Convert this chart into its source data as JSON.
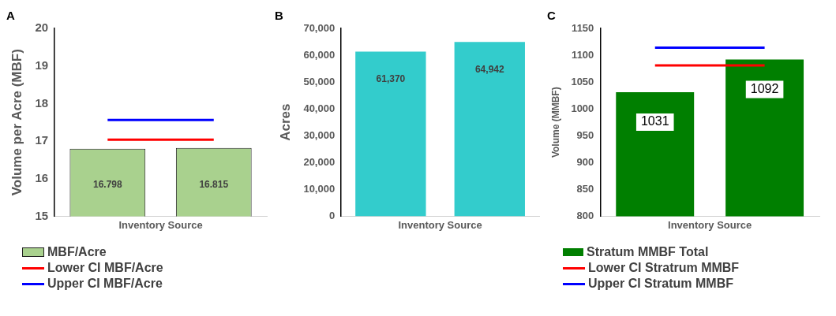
{
  "chart_data": [
    {
      "type": "bar",
      "title": "A",
      "xlabel": "Inventory Source",
      "ylabel": "Volume per Acre (MBF)",
      "categories": [
        null,
        null
      ],
      "ylim": [
        15,
        20
      ],
      "yticks": [
        15,
        16,
        17,
        18,
        19,
        20
      ],
      "grid": false,
      "legend": "bottom",
      "series": [
        {
          "name": "MBF/Acre",
          "color": "#a9d18e",
          "values": [
            16.798,
            16.815
          ],
          "value_labels": [
            "16.798",
            "16.815"
          ]
        },
        {
          "name": "Lower CI MBF/Acre",
          "type": "line",
          "color": "#ff0000",
          "values": [
            17.04,
            17.04
          ]
        },
        {
          "name": "Upper CI MBF/Acre",
          "type": "line",
          "color": "#0000ff",
          "values": [
            17.56,
            17.56
          ]
        }
      ]
    },
    {
      "type": "bar",
      "title": "B",
      "xlabel": "Inventory Source",
      "ylabel": "Acres",
      "categories": [
        null,
        null
      ],
      "ylim": [
        0,
        70000
      ],
      "yticks": [
        {
          "value": 0,
          "label": "0"
        },
        {
          "value": 10000,
          "label": "10,000"
        },
        {
          "value": 20000,
          "label": "20,000"
        },
        {
          "value": 30000,
          "label": "30,000"
        },
        {
          "value": 40000,
          "label": "40,000"
        },
        {
          "value": 50000,
          "label": "50,000"
        },
        {
          "value": 60000,
          "label": "60,000"
        },
        {
          "value": 70000,
          "label": "70,000"
        }
      ],
      "grid": false,
      "legend": false,
      "series": [
        {
          "color": "#33cccc",
          "values": [
            61370,
            64942
          ],
          "value_labels": [
            "61,370",
            "64,942"
          ]
        }
      ]
    },
    {
      "type": "bar",
      "title": "C",
      "xlabel": "Inventory Source",
      "ylabel": "Volume (MMBF)",
      "categories": [
        null,
        null
      ],
      "ylim": [
        800,
        1150
      ],
      "yticks": [
        800,
        850,
        900,
        950,
        1000,
        1050,
        1100,
        1150
      ],
      "grid": false,
      "legend": "bottom",
      "series": [
        {
          "name": "Stratum MMBF Total",
          "color": "#007f00",
          "values": [
            1031,
            1092
          ],
          "value_labels": [
            "1031",
            "1092"
          ]
        },
        {
          "name": "Lower CI Stratrum MMBF",
          "type": "line",
          "color": "#ff0000",
          "values": [
            1081,
            1081
          ]
        },
        {
          "name": "Upper CI Stratum MMBF",
          "type": "line",
          "color": "#0000ff",
          "values": [
            1114,
            1114
          ]
        }
      ]
    }
  ]
}
